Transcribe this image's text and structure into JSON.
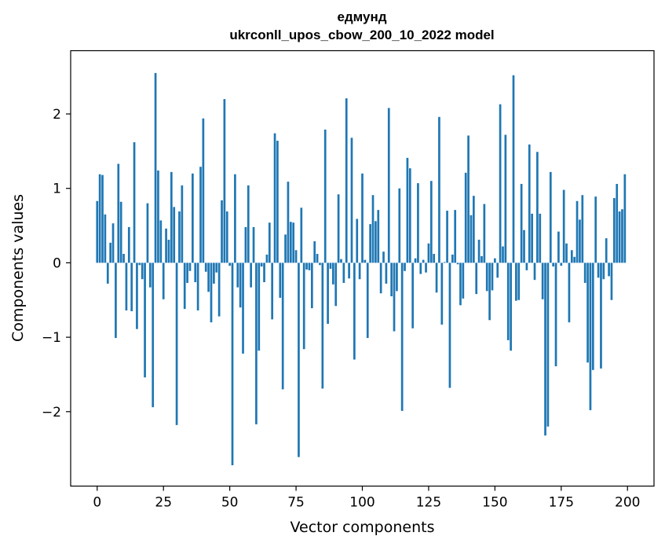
{
  "chart_data": {
    "type": "bar",
    "title": "едмунд",
    "subtitle": "ukrconll_upos_cbow_200_10_2022 model",
    "xlabel": "Vector components",
    "ylabel": "Components values",
    "xlim": [
      -10,
      210
    ],
    "ylim": [
      -3.0,
      2.85
    ],
    "xticks": [
      0,
      25,
      50,
      75,
      100,
      125,
      150,
      175,
      200
    ],
    "yticks": [
      -2,
      -1,
      0,
      1,
      2
    ],
    "ytick_labels": [
      "−2",
      "−1",
      "0",
      "1",
      "2"
    ],
    "grid": false,
    "color": "#1f77b4",
    "values": [
      0.83,
      1.19,
      1.18,
      0.65,
      -0.28,
      0.27,
      0.53,
      -1.01,
      1.33,
      0.82,
      0.12,
      -0.64,
      0.48,
      -0.65,
      1.62,
      -0.89,
      -0.03,
      -0.22,
      -1.54,
      0.8,
      -0.33,
      -1.94,
      2.55,
      1.24,
      0.57,
      -0.49,
      0.46,
      0.31,
      1.22,
      0.75,
      -2.18,
      0.69,
      1.04,
      -0.62,
      -0.27,
      -0.11,
      1.2,
      -0.26,
      -0.64,
      1.29,
      1.94,
      -0.12,
      -0.39,
      -0.8,
      -0.28,
      -0.13,
      -0.72,
      0.84,
      2.2,
      0.69,
      -0.04,
      -2.72,
      1.19,
      -0.33,
      -0.6,
      -1.22,
      0.48,
      1.04,
      -0.33,
      0.48,
      -2.17,
      -1.18,
      -0.05,
      -0.26,
      0.11,
      0.54,
      -0.76,
      1.74,
      1.64,
      -0.47,
      -1.7,
      0.38,
      1.09,
      0.55,
      0.54,
      0.17,
      -2.61,
      0.74,
      -1.16,
      -0.09,
      -0.1,
      -0.61,
      0.29,
      0.12,
      -0.03,
      -1.69,
      1.79,
      -0.82,
      -0.08,
      -0.29,
      -0.58,
      0.92,
      0.05,
      -0.27,
      2.21,
      -0.21,
      1.68,
      -1.3,
      0.59,
      -0.22,
      1.2,
      0.04,
      -1.01,
      0.52,
      0.91,
      0.56,
      0.71,
      -0.41,
      0.15,
      -0.28,
      2.08,
      -0.45,
      -0.92,
      -0.38,
      1.0,
      -1.99,
      -0.11,
      1.41,
      1.27,
      -0.88,
      0.06,
      1.07,
      -0.15,
      0.04,
      -0.13,
      0.26,
      1.1,
      0.12,
      -0.4,
      1.96,
      -0.83,
      0.01,
      0.7,
      -1.68,
      0.11,
      0.71,
      -0.02,
      -0.57,
      -0.48,
      1.21,
      1.71,
      0.64,
      0.9,
      -0.42,
      0.31,
      0.09,
      0.79,
      -0.38,
      -0.77,
      -0.37,
      0.06,
      -0.2,
      2.13,
      0.22,
      1.72,
      -1.04,
      -1.18,
      2.52,
      -0.51,
      -0.5,
      1.06,
      0.44,
      -0.1,
      1.59,
      0.66,
      -0.23,
      1.49,
      0.66,
      -0.49,
      -2.32,
      -2.2,
      1.22,
      -0.05,
      -1.39,
      0.42,
      -0.04,
      0.98,
      0.26,
      -0.8,
      0.17,
      0.08,
      0.83,
      0.58,
      0.91,
      -0.27,
      -1.34,
      -1.98,
      -1.44,
      0.89,
      -0.2,
      -1.42,
      -0.22,
      0.33,
      -0.18,
      -0.5,
      0.87,
      1.06,
      0.69,
      0.72,
      1.19
    ]
  }
}
